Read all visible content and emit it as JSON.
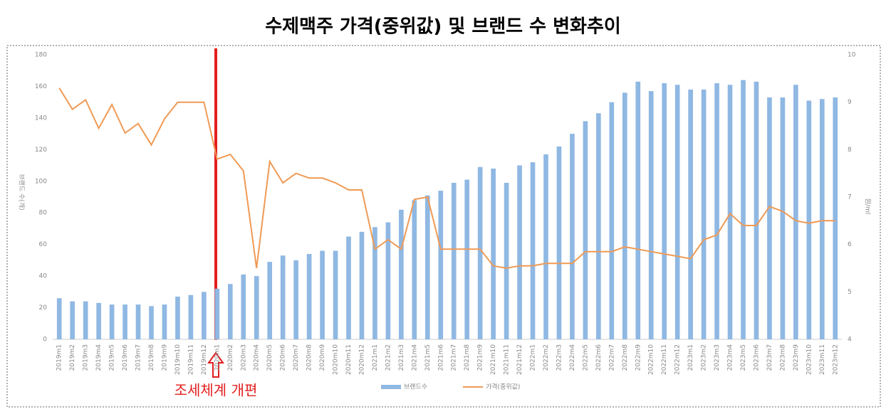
{
  "chart_data": {
    "type": "bar_line",
    "title": "수제맥주 가격(중위값) 및 브랜드 수 변화추이",
    "y_label": "브랜드 수(개)",
    "y2_label": "원/ml",
    "annotation": "조세체계 개편",
    "categories": [
      "2019m1",
      "2019m2",
      "2019m3",
      "2019m4",
      "2019m5",
      "2019m6",
      "2019m7",
      "2019m8",
      "2019m9",
      "2019m10",
      "2019m11",
      "2019m12",
      "2020m1",
      "2020m2",
      "2020m3",
      "2020m4",
      "2020m5",
      "2020m6",
      "2020m7",
      "2020m8",
      "2020m9",
      "2020m10",
      "2020m11",
      "2020m12",
      "2021m1",
      "2021m2",
      "2021m3",
      "2021m4",
      "2021m5",
      "2021m6",
      "2021m7",
      "2021m8",
      "2021m9",
      "2021m10",
      "2021m11",
      "2021m12",
      "2022m1",
      "2022m2",
      "2022m3",
      "2022m4",
      "2022m5",
      "2022m6",
      "2022m7",
      "2022m8",
      "2022m9",
      "2022m10",
      "2022m11",
      "2022m12",
      "2023m1",
      "2023m2",
      "2023m3",
      "2023m4",
      "2023m5",
      "2023m6",
      "2023m7",
      "2023m8",
      "2023m9",
      "2023m10",
      "2023m11",
      "2023m12"
    ],
    "series": [
      {
        "name": "브랜드수",
        "type": "bar",
        "color": "#8fb8e3",
        "values": [
          26,
          24,
          24,
          23,
          22,
          22,
          22,
          21,
          22,
          27,
          28,
          30,
          32,
          35,
          41,
          40,
          49,
          53,
          50,
          54,
          56,
          56,
          65,
          68,
          71,
          74,
          82,
          88,
          91,
          94,
          99,
          101,
          109,
          108,
          99,
          110,
          112,
          117,
          122,
          130,
          138,
          143,
          150,
          156,
          163,
          157,
          162,
          161,
          158,
          158,
          162,
          161,
          164,
          163,
          153,
          153,
          161,
          151,
          152,
          153
        ]
      },
      {
        "name": "가격(중위값)",
        "type": "line",
        "axis": "y2",
        "color": "#ef9a55",
        "values": [
          9.3,
          8.85,
          9.05,
          8.45,
          8.95,
          8.35,
          8.55,
          8.1,
          8.65,
          9.0,
          9.0,
          9.0,
          7.8,
          7.9,
          7.55,
          5.5,
          7.75,
          7.3,
          7.5,
          7.4,
          7.4,
          7.3,
          7.15,
          7.15,
          5.9,
          6.1,
          5.9,
          6.95,
          7.0,
          5.9,
          5.9,
          5.9,
          5.9,
          5.55,
          5.5,
          5.55,
          5.55,
          5.6,
          5.6,
          5.6,
          5.85,
          5.85,
          5.85,
          5.95,
          5.9,
          5.85,
          5.8,
          5.75,
          5.7,
          6.1,
          6.2,
          6.65,
          6.4,
          6.4,
          6.8,
          6.7,
          6.5,
          6.45,
          6.5,
          6.5
        ]
      }
    ],
    "ylim": [
      0,
      180
    ],
    "yticks": [
      0,
      20,
      40,
      60,
      80,
      100,
      120,
      140,
      160,
      180
    ],
    "y2lim": [
      4,
      10
    ],
    "y2ticks": [
      4,
      5,
      6,
      7,
      8,
      9,
      10
    ],
    "legend": "bottom"
  }
}
